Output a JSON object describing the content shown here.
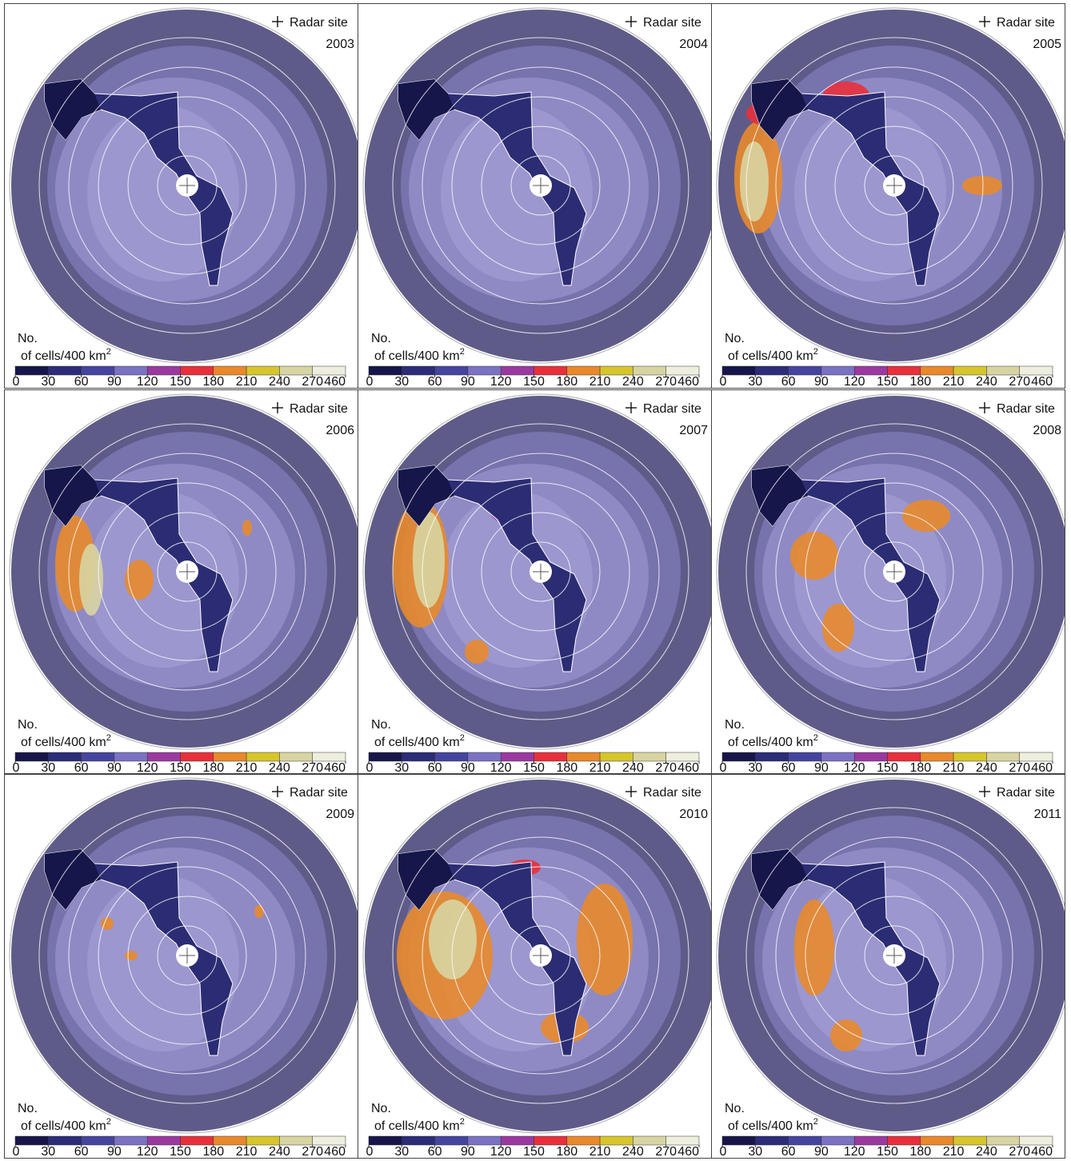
{
  "legend": {
    "marker_label": "Radar site"
  },
  "colorbar": {
    "title_line1": "No.",
    "title_line2": "of cells/400 km",
    "title_sup": "2",
    "ticks": [
      0,
      30,
      60,
      90,
      120,
      150,
      180,
      210,
      240,
      270,
      460
    ],
    "colors": [
      "#16164a",
      "#2c2c78",
      "#4545a0",
      "#7a72c2",
      "#9a3aa0",
      "#e8303c",
      "#e8892c",
      "#d6c62c",
      "#d8d4a2",
      "#eeeedf"
    ]
  },
  "panels": [
    {
      "year": "2003"
    },
    {
      "year": "2004"
    },
    {
      "year": "2005"
    },
    {
      "year": "2006"
    },
    {
      "year": "2007"
    },
    {
      "year": "2008"
    },
    {
      "year": "2009"
    },
    {
      "year": "2010"
    },
    {
      "year": "2011"
    }
  ]
}
